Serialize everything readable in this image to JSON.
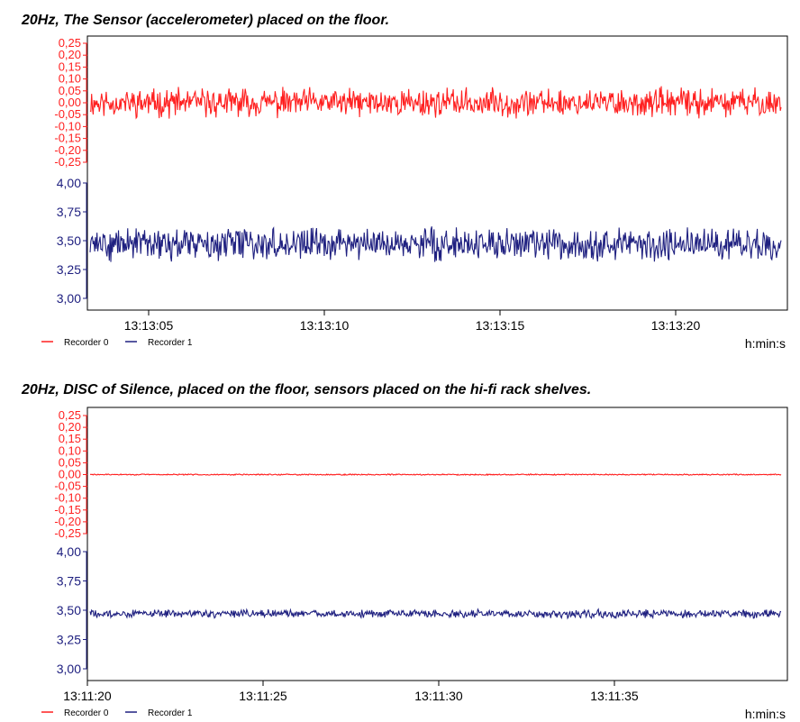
{
  "chart_data": [
    {
      "type": "line",
      "title": "20Hz, The Sensor (accelerometer) placed on the floor.",
      "xlabel": "h:min:s",
      "x_ticks": [
        "13:13:05",
        "13:13:10",
        "13:13:15",
        "13:13:20"
      ],
      "red_axis_ticks": [
        "0,25",
        "0,20",
        "0,15",
        "0,10",
        "0,05",
        "0,00",
        "-0,05",
        "-0,10",
        "-0,15",
        "-0,20",
        "-0,25"
      ],
      "blue_axis_ticks": [
        "4,00",
        "3,75",
        "3,50",
        "3,25",
        "3,00"
      ],
      "red_ylim": [
        -0.25,
        0.25
      ],
      "blue_ylim": [
        3.0,
        4.0
      ],
      "series": [
        {
          "name": "Recorder 0",
          "color": "#ff1f1f",
          "axis": "red",
          "mean": 0.0,
          "amplitude": 0.07
        },
        {
          "name": "Recorder 1",
          "color": "#1f2080",
          "axis": "blue",
          "mean": 3.47,
          "amplitude": 0.16
        }
      ],
      "legend": "bottom-left",
      "grid": false
    },
    {
      "type": "line",
      "title": "20Hz, DISC of Silence, placed on the floor, sensors placed on the hi-fi rack shelves.",
      "xlabel": "h:min:s",
      "x_ticks": [
        "13:11:20",
        "13:11:25",
        "13:11:30",
        "13:11:35"
      ],
      "red_axis_ticks": [
        "0,25",
        "0,20",
        "0,15",
        "0,10",
        "0,05",
        "0,00",
        "-0,05",
        "-0,10",
        "-0,15",
        "-0,20",
        "-0,25"
      ],
      "blue_axis_ticks": [
        "4,00",
        "3,75",
        "3,50",
        "3,25",
        "3,00"
      ],
      "red_ylim": [
        -0.25,
        0.25
      ],
      "blue_ylim": [
        3.0,
        4.0
      ],
      "series": [
        {
          "name": "Recorder 0",
          "color": "#ff1f1f",
          "axis": "red",
          "mean": 0.0,
          "amplitude": 0.003
        },
        {
          "name": "Recorder 1",
          "color": "#1f2080",
          "axis": "blue",
          "mean": 3.47,
          "amplitude": 0.04
        }
      ],
      "legend": "bottom-left",
      "grid": false
    }
  ]
}
